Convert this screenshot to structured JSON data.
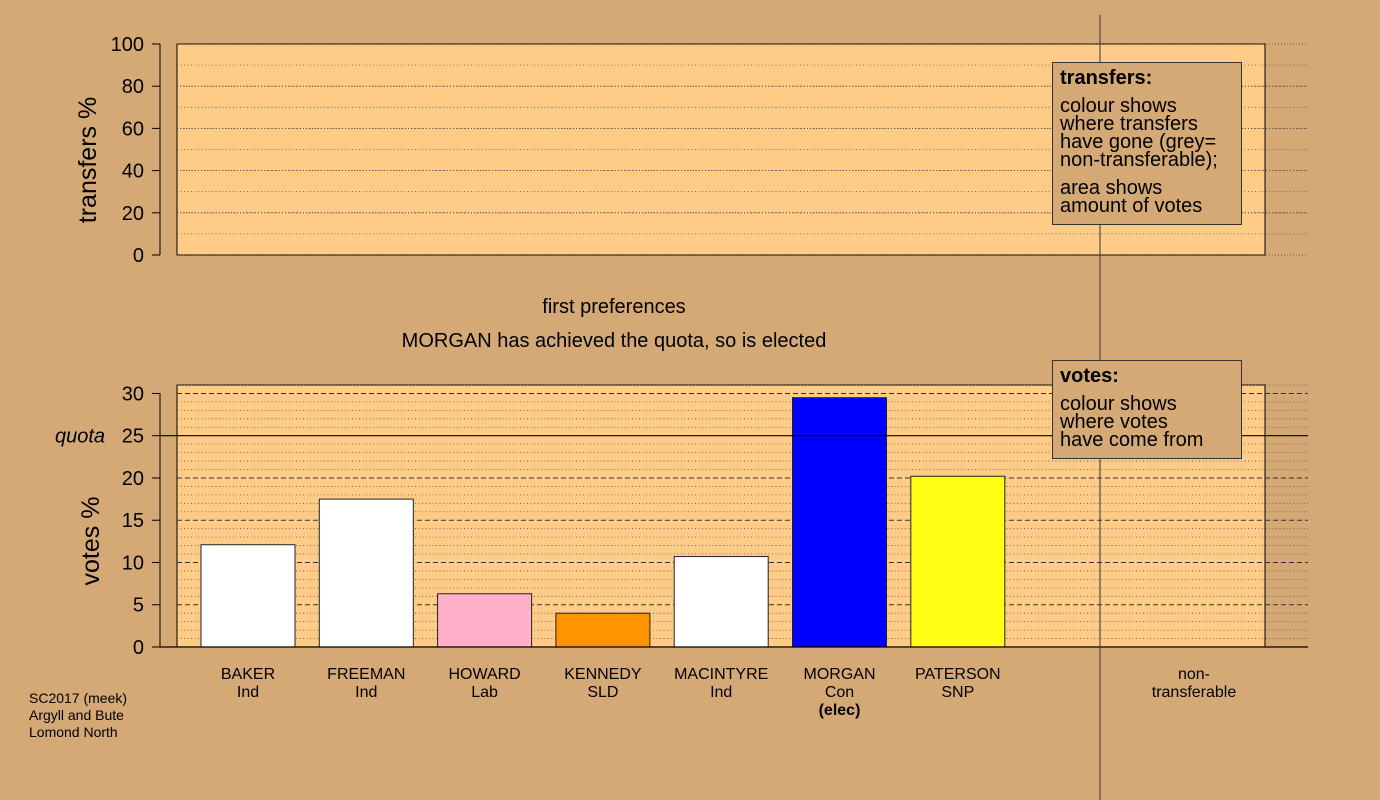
{
  "transfers_panel": {
    "ylabel": "transfers %",
    "yticks": [
      "0",
      "20",
      "40",
      "60",
      "80",
      "100"
    ],
    "legend_title": "transfers:",
    "legend_lines_1": [
      "colour shows",
      "where transfers",
      "have gone (grey=",
      "non-transferable);"
    ],
    "legend_lines_2": [
      "area shows",
      "amount of votes"
    ]
  },
  "stage_title": "first preferences",
  "stage_subtitle": "MORGAN has achieved the quota, so is elected",
  "votes_panel": {
    "ylabel": "votes %",
    "quota_label": "quota",
    "legend_title": "votes:",
    "legend_lines": [
      "colour shows",
      "where votes",
      "have come from"
    ]
  },
  "footer": [
    "SC2017 (meek)",
    "Argyll and Bute",
    "Lomond North"
  ],
  "colors": {
    "background": "#D4A976",
    "plot_bg": "#FFCC88",
    "Ind": "#FFFFFF",
    "Lab": "#FFB0C8",
    "SLD": "#FF9400",
    "Con": "#0000FF",
    "SNP": "#FFFF14"
  },
  "chart_data": [
    {
      "type": "bar",
      "panel": "transfers",
      "ylabel": "transfers %",
      "ylim": [
        0,
        100
      ],
      "yticks": [
        0,
        20,
        40,
        60,
        80,
        100
      ],
      "series": []
    },
    {
      "type": "bar",
      "panel": "votes",
      "ylabel": "votes %",
      "ylim": [
        0,
        30
      ],
      "yticks": [
        0,
        5,
        10,
        15,
        20,
        25,
        30
      ],
      "quota": 25,
      "categories": [
        {
          "name": "BAKER",
          "party": "Ind",
          "note": ""
        },
        {
          "name": "FREEMAN",
          "party": "Ind",
          "note": ""
        },
        {
          "name": "HOWARD",
          "party": "Lab",
          "note": ""
        },
        {
          "name": "KENNEDY",
          "party": "SLD",
          "note": ""
        },
        {
          "name": "MACINTYRE",
          "party": "Ind",
          "note": ""
        },
        {
          "name": "MORGAN",
          "party": "Con",
          "note": "(elec)"
        },
        {
          "name": "PATERSON",
          "party": "SNP",
          "note": ""
        }
      ],
      "values": [
        12.1,
        17.5,
        6.3,
        4.0,
        10.7,
        29.5,
        20.2
      ],
      "nontransferable_label": [
        "non-",
        "transferable"
      ],
      "nontransferable_value": 0
    }
  ]
}
